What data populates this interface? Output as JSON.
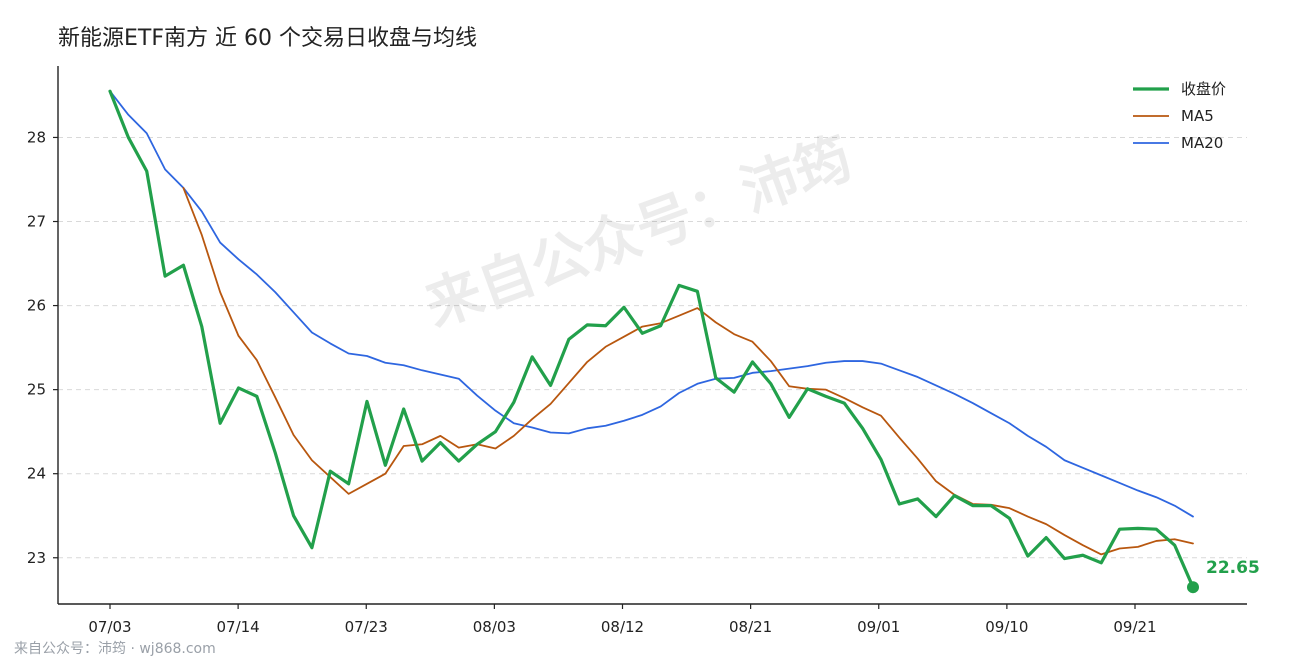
{
  "chart_data": {
    "type": "line",
    "title": "新能源ETF南方 近 60 个交易日收盘与均线",
    "xlabel": "",
    "ylabel": "",
    "x_tick_labels": [
      "07/03",
      "07/14",
      "07/23",
      "08/03",
      "08/12",
      "08/21",
      "09/01",
      "09/10",
      "09/21"
    ],
    "y_tick_labels": [
      "23",
      "24",
      "25",
      "26",
      "27",
      "28"
    ],
    "ylim": [
      22.45,
      28.85
    ],
    "grid": true,
    "legend_position": "top-right",
    "series": [
      {
        "name": "收盘价",
        "color": "#22a04b",
        "values": [
          28.55,
          28.0,
          27.6,
          26.35,
          26.48,
          25.75,
          24.6,
          25.02,
          24.92,
          24.25,
          23.5,
          23.12,
          24.03,
          23.88,
          24.86,
          24.1,
          24.77,
          24.15,
          24.37,
          24.15,
          24.35,
          24.5,
          24.85,
          25.39,
          25.05,
          25.6,
          25.77,
          25.76,
          25.98,
          25.67,
          25.76,
          26.24,
          26.17,
          25.14,
          24.97,
          25.33,
          25.07,
          24.67,
          25.01,
          24.92,
          24.84,
          24.54,
          24.17,
          23.64,
          23.7,
          23.49,
          23.74,
          23.62,
          23.62,
          23.47,
          23.02,
          23.24,
          22.99,
          23.03,
          22.94,
          23.34,
          23.35,
          23.34,
          23.15,
          22.65
        ]
      },
      {
        "name": "MA5",
        "color": "#b8570f",
        "values": [
          null,
          null,
          null,
          null,
          27.4,
          26.84,
          26.16,
          25.64,
          25.35,
          24.91,
          24.46,
          24.16,
          23.96,
          23.76,
          23.88,
          24.0,
          24.33,
          24.35,
          24.45,
          24.31,
          24.35,
          24.3,
          24.45,
          24.65,
          24.83,
          25.08,
          25.33,
          25.51,
          25.63,
          25.75,
          25.79,
          25.88,
          25.97,
          25.8,
          25.66,
          25.57,
          25.34,
          25.04,
          25.01,
          25.0,
          24.9,
          24.79,
          24.69,
          24.43,
          24.18,
          23.91,
          23.75,
          23.64,
          23.63,
          23.59,
          23.49,
          23.4,
          23.27,
          23.15,
          23.04,
          23.11,
          23.13,
          23.2,
          23.22,
          23.17
        ]
      },
      {
        "name": "MA20",
        "color": "#2e66e0",
        "values": [
          28.55,
          28.27,
          28.05,
          27.62,
          27.4,
          27.12,
          26.75,
          26.55,
          26.37,
          26.16,
          25.92,
          25.68,
          25.55,
          25.43,
          25.4,
          25.32,
          25.29,
          25.23,
          25.18,
          25.13,
          24.93,
          24.75,
          24.6,
          24.55,
          24.49,
          24.48,
          24.54,
          24.57,
          24.63,
          24.7,
          24.8,
          24.96,
          25.07,
          25.13,
          25.14,
          25.2,
          25.22,
          25.25,
          25.28,
          25.32,
          25.34,
          25.34,
          25.31,
          25.23,
          25.15,
          25.05,
          24.95,
          24.84,
          24.72,
          24.6,
          24.45,
          24.32,
          24.16,
          24.07,
          23.98,
          23.89,
          23.8,
          23.72,
          23.62,
          23.49
        ]
      }
    ],
    "last_value_label": "22.65"
  },
  "watermark": "来自公众号：沛筠",
  "footer": "来自公众号：沛筠 · wj868.com"
}
